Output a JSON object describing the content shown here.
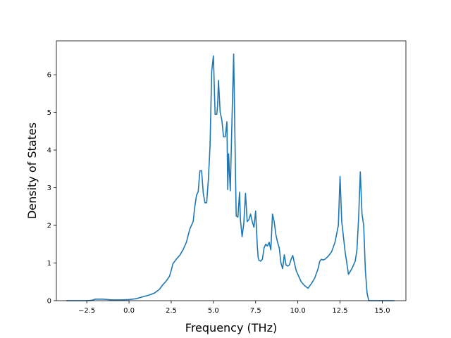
{
  "chart_data": {
    "type": "line",
    "title": "",
    "xlabel": "Frequency (THz)",
    "ylabel": "Density of States",
    "xlim": [
      -4.3,
      16.4
    ],
    "ylim": [
      0,
      6.9
    ],
    "xticks": [
      -2.5,
      0.0,
      2.5,
      5.0,
      7.5,
      10.0,
      12.5,
      15.0
    ],
    "xtick_labels": [
      "−2.5",
      "0.0",
      "2.5",
      "5.0",
      "7.5",
      "10.0",
      "12.5",
      "15.0"
    ],
    "yticks": [
      0,
      1,
      2,
      3,
      4,
      5,
      6
    ],
    "ytick_labels": [
      "0",
      "1",
      "2",
      "3",
      "4",
      "5",
      "6"
    ],
    "grid": false,
    "legend": "none",
    "series": [
      {
        "color": "#1f77b4",
        "x": [
          -3.7,
          -2.5,
          -2.2,
          -2.0,
          -1.5,
          -1.0,
          -0.5,
          0.0,
          0.4,
          0.8,
          1.2,
          1.5,
          1.8,
          2.0,
          2.2,
          2.4,
          2.5,
          2.6,
          2.8,
          3.0,
          3.2,
          3.4,
          3.6,
          3.8,
          3.9,
          4.0,
          4.1,
          4.2,
          4.3,
          4.4,
          4.5,
          4.6,
          4.7,
          4.8,
          4.9,
          5.0,
          5.1,
          5.2,
          5.25,
          5.3,
          5.4,
          5.5,
          5.6,
          5.7,
          5.8,
          5.85,
          5.9,
          6.0,
          6.1,
          6.2,
          6.3,
          6.35,
          6.45,
          6.55,
          6.6,
          6.7,
          6.8,
          6.9,
          7.0,
          7.1,
          7.2,
          7.3,
          7.4,
          7.5,
          7.6,
          7.65,
          7.7,
          7.8,
          7.9,
          8.0,
          8.1,
          8.2,
          8.3,
          8.4,
          8.5,
          8.6,
          8.7,
          8.8,
          8.9,
          9.0,
          9.1,
          9.2,
          9.3,
          9.4,
          9.5,
          9.6,
          9.7,
          9.8,
          9.9,
          10.0,
          10.1,
          10.2,
          10.4,
          10.6,
          10.8,
          11.0,
          11.2,
          11.3,
          11.4,
          11.5,
          11.6,
          11.8,
          12.0,
          12.2,
          12.4,
          12.5,
          12.6,
          12.7,
          12.8,
          12.9,
          13.0,
          13.2,
          13.4,
          13.5,
          13.6,
          13.7,
          13.8,
          13.9,
          14.0,
          14.1,
          14.2,
          14.5,
          15.0,
          15.7
        ],
        "y": [
          0.0,
          0.0,
          0.01,
          0.04,
          0.04,
          0.02,
          0.02,
          0.03,
          0.05,
          0.1,
          0.15,
          0.2,
          0.3,
          0.42,
          0.52,
          0.65,
          0.8,
          0.98,
          1.1,
          1.2,
          1.35,
          1.55,
          1.9,
          2.1,
          2.5,
          2.8,
          2.9,
          3.45,
          3.45,
          2.85,
          2.6,
          2.6,
          3.2,
          4.1,
          6.1,
          6.5,
          4.95,
          4.95,
          5.2,
          5.85,
          5.0,
          4.8,
          4.35,
          4.35,
          4.75,
          2.95,
          3.9,
          2.92,
          4.8,
          6.55,
          3.6,
          2.25,
          2.22,
          2.88,
          2.15,
          1.7,
          2.05,
          2.85,
          2.1,
          2.15,
          2.3,
          2.1,
          1.95,
          2.38,
          1.45,
          1.15,
          1.07,
          1.05,
          1.1,
          1.4,
          1.5,
          1.45,
          1.55,
          1.35,
          2.3,
          2.1,
          1.75,
          1.55,
          1.4,
          1.0,
          0.85,
          1.22,
          0.95,
          0.92,
          0.95,
          1.1,
          1.2,
          1.0,
          0.8,
          0.7,
          0.6,
          0.5,
          0.4,
          0.33,
          0.45,
          0.6,
          0.85,
          1.05,
          1.1,
          1.08,
          1.1,
          1.18,
          1.3,
          1.55,
          2.0,
          3.3,
          2.1,
          1.7,
          1.3,
          1.0,
          0.7,
          0.85,
          1.05,
          1.35,
          2.2,
          3.42,
          2.3,
          2.0,
          0.8,
          0.2,
          0.0,
          0.0,
          0.0,
          0.0
        ]
      }
    ]
  }
}
